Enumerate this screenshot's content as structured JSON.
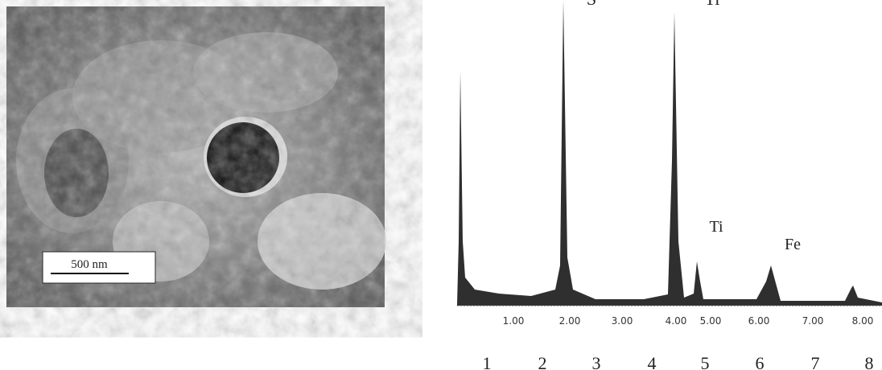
{
  "figure": {
    "image": {
      "scale_bar": "500 nm"
    },
    "spectrum": {
      "peak_labels": [
        "S",
        "Ti",
        "Ti",
        "Fe"
      ],
      "tick_labels": [
        "1.00",
        "2.00",
        "3.00",
        "4.00",
        "5.00",
        "6.00",
        "7.00",
        "8.00"
      ],
      "panel_numbers": [
        "1",
        "2",
        "3",
        "4",
        "5",
        "6",
        "7",
        "8"
      ]
    }
  }
}
